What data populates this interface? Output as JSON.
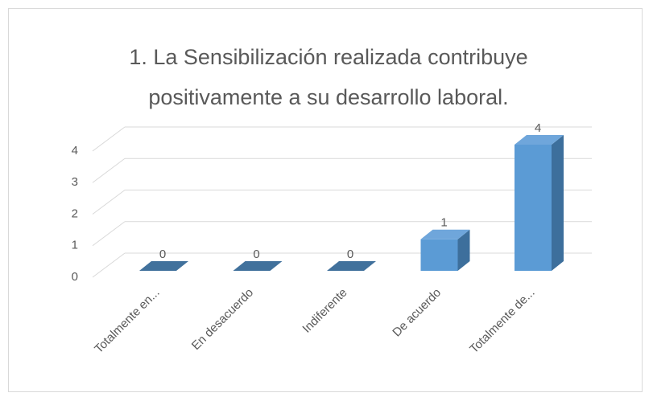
{
  "chart_data": {
    "type": "bar3d",
    "title": "1. La Sensibilización realizada contribuye positivamente a su desarrollo laboral.",
    "categories": [
      "Totalmente en...",
      "En desacuerdo",
      "Indiferente",
      "De acuerdo",
      "Totalmente de..."
    ],
    "values": [
      0,
      0,
      0,
      1,
      4
    ],
    "color": "#5b9bd5",
    "ylim": [
      0,
      4
    ],
    "yticks": [
      0,
      1,
      2,
      3,
      4
    ],
    "grid": true
  }
}
